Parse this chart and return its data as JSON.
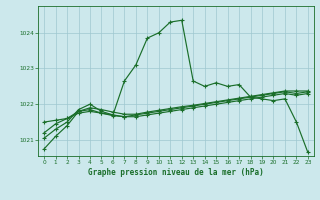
{
  "title": "Graphe pression niveau de la mer (hPa)",
  "bg_color": "#cce8ec",
  "grid_color": "#9fc8d0",
  "line_color": "#1a6e2a",
  "xlim": [
    -0.5,
    23.5
  ],
  "ylim": [
    1020.55,
    1024.75
  ],
  "yticks": [
    1021,
    1022,
    1023,
    1024
  ],
  "xticks": [
    0,
    1,
    2,
    3,
    4,
    5,
    6,
    7,
    8,
    9,
    10,
    11,
    12,
    13,
    14,
    15,
    16,
    17,
    18,
    19,
    20,
    21,
    22,
    23
  ],
  "line1_x": [
    0,
    1,
    2,
    3,
    4,
    5,
    6,
    7,
    8,
    9,
    10,
    11,
    12,
    13,
    14,
    15,
    16,
    17,
    18,
    19,
    20,
    21,
    22,
    23
  ],
  "line1_y": [
    1020.75,
    1021.1,
    1021.4,
    1021.8,
    1021.85,
    1021.75,
    1021.7,
    1022.65,
    1023.1,
    1023.85,
    1024.0,
    1024.3,
    1024.35,
    1022.65,
    1022.5,
    1022.6,
    1022.5,
    1022.55,
    1022.2,
    1022.15,
    1022.1,
    1022.15,
    1021.5,
    1020.65
  ],
  "line2_x": [
    0,
    1,
    2,
    3,
    4,
    5,
    6,
    7,
    8,
    9,
    10,
    11,
    12,
    13,
    14,
    15,
    16,
    17,
    18,
    19,
    20,
    21,
    22,
    23
  ],
  "line2_y": [
    1021.05,
    1021.3,
    1021.5,
    1021.85,
    1022.0,
    1021.8,
    1021.7,
    1021.65,
    1021.7,
    1021.75,
    1021.8,
    1021.85,
    1021.9,
    1021.95,
    1022.0,
    1022.05,
    1022.1,
    1022.15,
    1022.2,
    1022.25,
    1022.3,
    1022.35,
    1022.3,
    1022.35
  ],
  "line3_x": [
    0,
    1,
    2,
    3,
    4,
    5,
    6,
    7,
    8,
    9,
    10,
    11,
    12,
    13,
    14,
    15,
    16,
    17,
    18,
    19,
    20,
    21,
    22,
    23
  ],
  "line3_y": [
    1021.2,
    1021.45,
    1021.6,
    1021.8,
    1021.9,
    1021.85,
    1021.78,
    1021.72,
    1021.72,
    1021.78,
    1021.83,
    1021.88,
    1021.93,
    1021.97,
    1022.02,
    1022.07,
    1022.12,
    1022.17,
    1022.22,
    1022.27,
    1022.32,
    1022.37,
    1022.37,
    1022.37
  ],
  "line4_x": [
    0,
    1,
    2,
    3,
    4,
    5,
    6,
    7,
    8,
    9,
    10,
    11,
    12,
    13,
    14,
    15,
    16,
    17,
    18,
    19,
    20,
    21,
    22,
    23
  ],
  "line4_y": [
    1021.5,
    1021.55,
    1021.6,
    1021.75,
    1021.8,
    1021.75,
    1021.68,
    1021.65,
    1021.65,
    1021.7,
    1021.75,
    1021.8,
    1021.85,
    1021.9,
    1021.95,
    1022.0,
    1022.05,
    1022.1,
    1022.15,
    1022.2,
    1022.25,
    1022.3,
    1022.25,
    1022.3
  ]
}
